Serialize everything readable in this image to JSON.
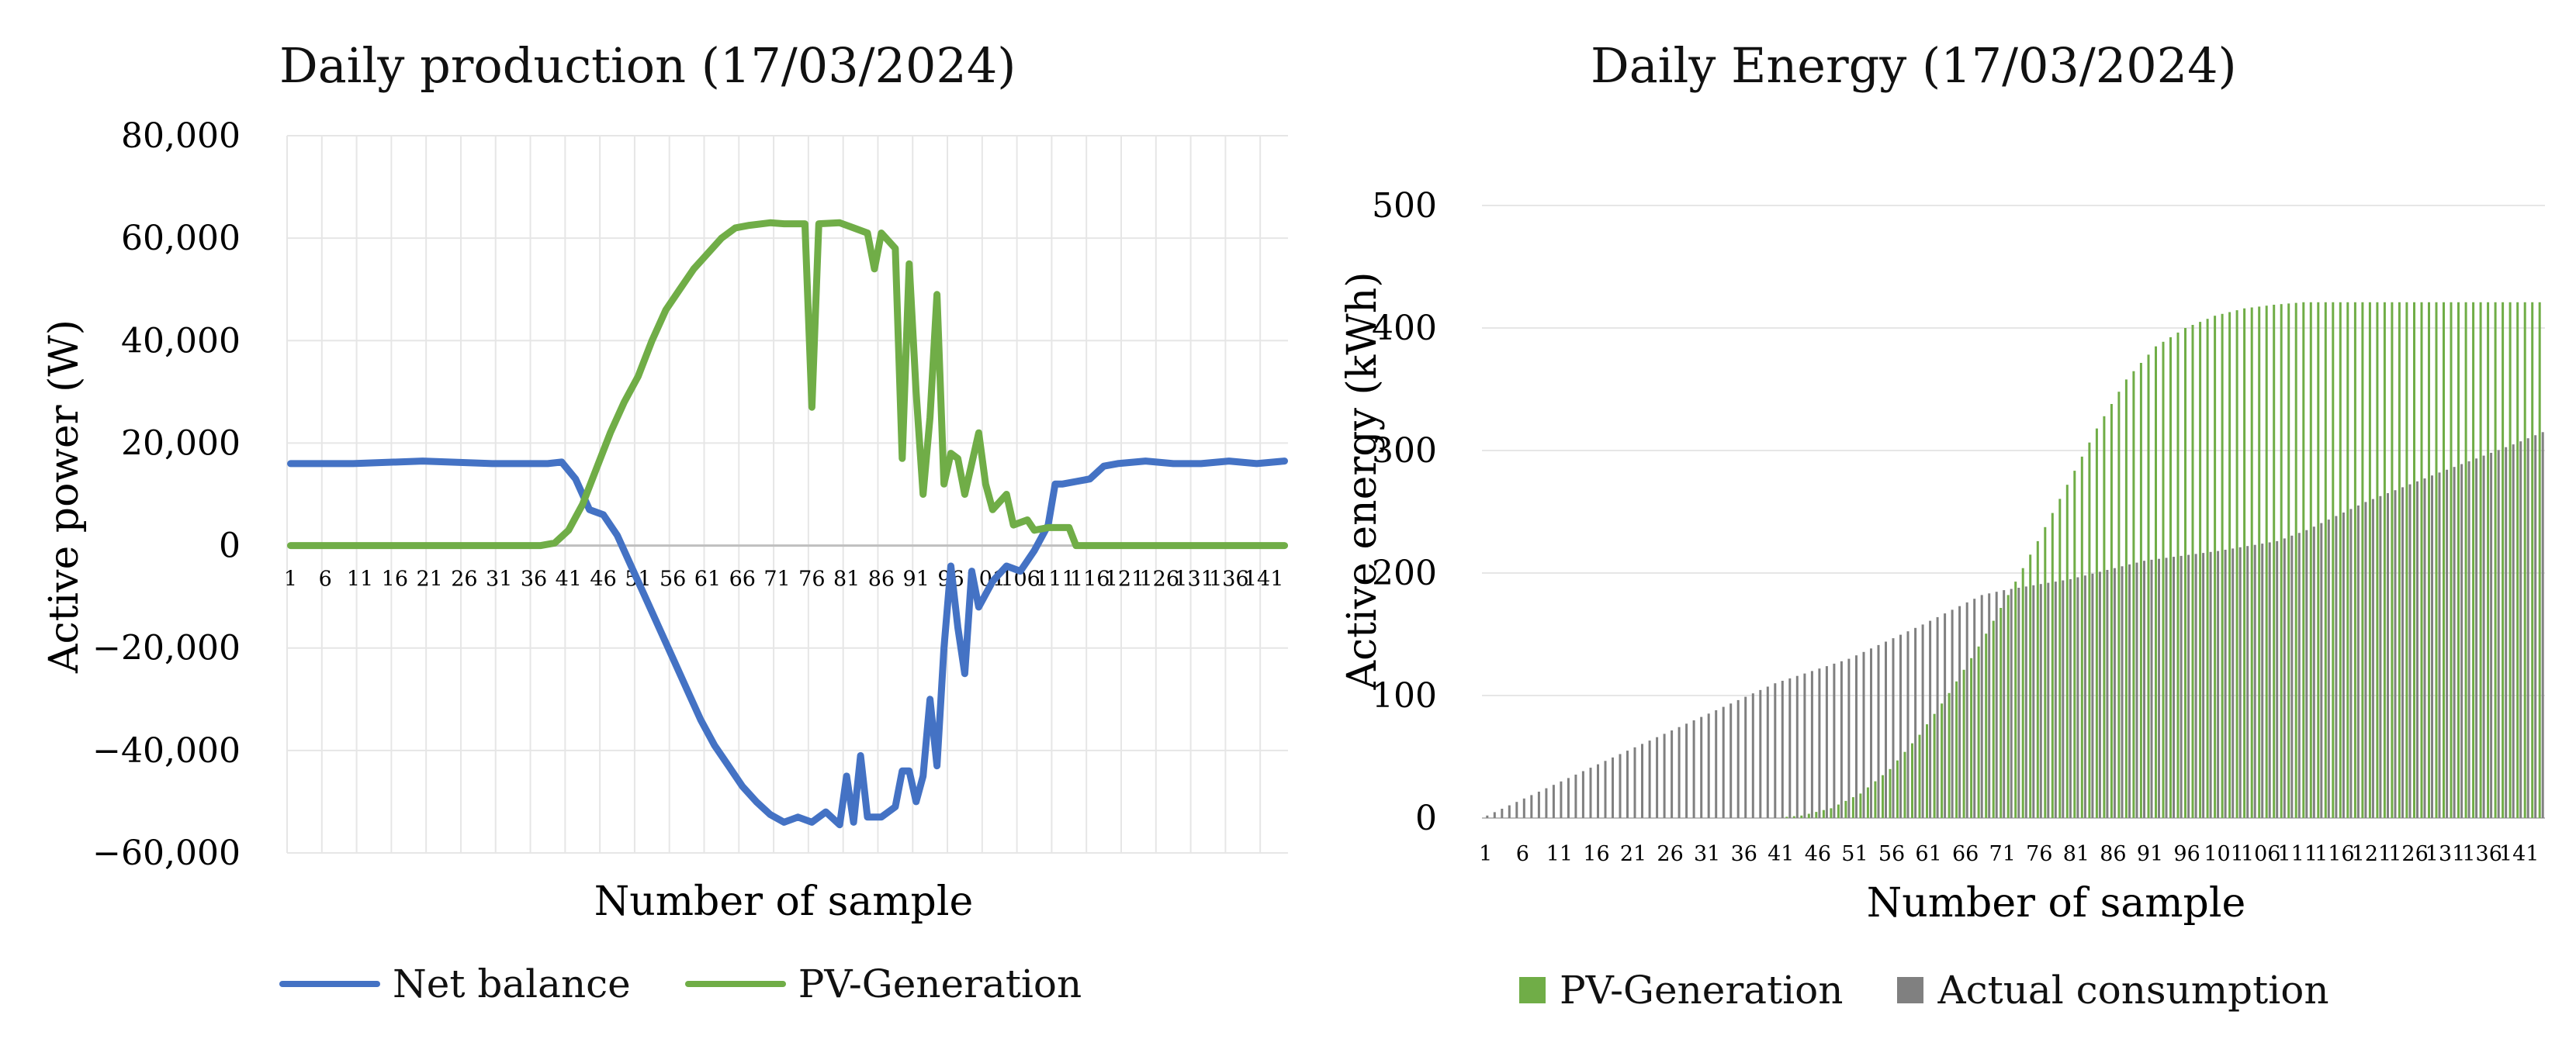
{
  "chart_data": [
    {
      "type": "line",
      "title": "Daily production (17/03/2024)",
      "xlabel": "Number of sample",
      "ylabel": "Active power (W)",
      "ylim": [
        -60000,
        80000
      ],
      "yticks": [
        80000,
        60000,
        40000,
        20000,
        0,
        -20000,
        -40000,
        -60000
      ],
      "ytick_labels": [
        "80,000",
        "60,000",
        "40,000",
        "20,000",
        "0",
        "−20,000",
        "−40,000",
        "−60,000"
      ],
      "xlim": [
        1,
        144
      ],
      "xtick_labels": [
        "1",
        "6",
        "11",
        "16",
        "21",
        "26",
        "31",
        "36",
        "41",
        "46",
        "51",
        "56",
        "61",
        "66",
        "71",
        "76",
        "81",
        "86",
        "91",
        "96",
        "101",
        "106",
        "111",
        "116",
        "121",
        "126",
        "131",
        "136",
        "141"
      ],
      "grid": true,
      "legend_position": "bottom",
      "series": [
        {
          "name": "Net balance",
          "color": "#4472C4",
          "points": [
            [
              1,
              16000
            ],
            [
              10,
              16000
            ],
            [
              20,
              16500
            ],
            [
              30,
              16000
            ],
            [
              38,
              16000
            ],
            [
              40,
              16300
            ],
            [
              42,
              13000
            ],
            [
              44,
              7000
            ],
            [
              46,
              6000
            ],
            [
              48,
              2000
            ],
            [
              50,
              -4000
            ],
            [
              52,
              -10000
            ],
            [
              54,
              -16000
            ],
            [
              56,
              -22000
            ],
            [
              58,
              -28000
            ],
            [
              60,
              -34000
            ],
            [
              62,
              -39000
            ],
            [
              64,
              -43000
            ],
            [
              66,
              -47000
            ],
            [
              68,
              -50000
            ],
            [
              70,
              -52500
            ],
            [
              72,
              -54000
            ],
            [
              74,
              -53000
            ],
            [
              76,
              -54000
            ],
            [
              78,
              -52000
            ],
            [
              80,
              -54500
            ],
            [
              81,
              -45000
            ],
            [
              82,
              -54000
            ],
            [
              83,
              -41000
            ],
            [
              84,
              -53000
            ],
            [
              86,
              -53000
            ],
            [
              88,
              -51000
            ],
            [
              89,
              -44000
            ],
            [
              90,
              -44000
            ],
            [
              91,
              -50000
            ],
            [
              92,
              -45000
            ],
            [
              93,
              -30000
            ],
            [
              94,
              -43000
            ],
            [
              95,
              -20000
            ],
            [
              96,
              -4000
            ],
            [
              97,
              -16000
            ],
            [
              98,
              -25000
            ],
            [
              99,
              -5000
            ],
            [
              100,
              -12000
            ],
            [
              102,
              -7000
            ],
            [
              104,
              -4000
            ],
            [
              106,
              -5000
            ],
            [
              108,
              -1000
            ],
            [
              110,
              4000
            ],
            [
              111,
              12000
            ],
            [
              112,
              12000
            ],
            [
              114,
              12500
            ],
            [
              116,
              13000
            ],
            [
              118,
              15500
            ],
            [
              120,
              16000
            ],
            [
              124,
              16500
            ],
            [
              128,
              16000
            ],
            [
              132,
              16000
            ],
            [
              136,
              16500
            ],
            [
              140,
              16000
            ],
            [
              144,
              16500
            ]
          ]
        },
        {
          "name": "PV-Generation",
          "color": "#70AD47",
          "points": [
            [
              1,
              0
            ],
            [
              37,
              0
            ],
            [
              39,
              500
            ],
            [
              41,
              3000
            ],
            [
              43,
              8000
            ],
            [
              45,
              15000
            ],
            [
              47,
              22000
            ],
            [
              49,
              28000
            ],
            [
              51,
              33000
            ],
            [
              53,
              40000
            ],
            [
              55,
              46000
            ],
            [
              57,
              50000
            ],
            [
              59,
              54000
            ],
            [
              61,
              57000
            ],
            [
              63,
              60000
            ],
            [
              65,
              62000
            ],
            [
              67,
              62500
            ],
            [
              70,
              63000
            ],
            [
              72,
              62800
            ],
            [
              74,
              62800
            ],
            [
              75,
              62800
            ],
            [
              76,
              27000
            ],
            [
              77,
              62800
            ],
            [
              80,
              63000
            ],
            [
              82,
              62000
            ],
            [
              84,
              61000
            ],
            [
              85,
              54000
            ],
            [
              86,
              61000
            ],
            [
              88,
              58000
            ],
            [
              89,
              17000
            ],
            [
              90,
              55000
            ],
            [
              91,
              30000
            ],
            [
              92,
              10000
            ],
            [
              93,
              25000
            ],
            [
              94,
              49000
            ],
            [
              95,
              12000
            ],
            [
              96,
              18000
            ],
            [
              97,
              17000
            ],
            [
              98,
              10000
            ],
            [
              100,
              22000
            ],
            [
              101,
              12000
            ],
            [
              102,
              7000
            ],
            [
              104,
              10000
            ],
            [
              105,
              4000
            ],
            [
              107,
              5000
            ],
            [
              108,
              3000
            ],
            [
              110,
              3500
            ],
            [
              113,
              3500
            ],
            [
              114,
              0
            ],
            [
              120,
              0
            ],
            [
              144,
              0
            ]
          ]
        }
      ]
    },
    {
      "type": "bar",
      "title": "Daily Energy (17/03/2024)",
      "xlabel": "Number of sample",
      "ylabel": "Active energy (kWh)",
      "ylim": [
        0,
        500
      ],
      "yticks": [
        500,
        400,
        300,
        200,
        100,
        0
      ],
      "ytick_labels": [
        "500",
        "400",
        "300",
        "200",
        "100",
        "0"
      ],
      "n_samples": 144,
      "xtick_labels": [
        "1",
        "6",
        "11",
        "16",
        "21",
        "26",
        "31",
        "36",
        "41",
        "46",
        "51",
        "56",
        "61",
        "66",
        "71",
        "76",
        "81",
        "86",
        "91",
        "96",
        "101",
        "106",
        "111",
        "116",
        "121",
        "126",
        "131",
        "136",
        "141"
      ],
      "grid": true,
      "legend_position": "bottom",
      "series": [
        {
          "name": "PV-Generation",
          "color": "#70AD47",
          "points": [
            [
              1,
              0
            ],
            [
              40,
              0
            ],
            [
              44,
              2
            ],
            [
              48,
              8
            ],
            [
              52,
              20
            ],
            [
              56,
              40
            ],
            [
              60,
              68
            ],
            [
              64,
              102
            ],
            [
              68,
              140
            ],
            [
              72,
              182
            ],
            [
              76,
              226
            ],
            [
              80,
              272
            ],
            [
              84,
              318
            ],
            [
              88,
              358
            ],
            [
              92,
              385
            ],
            [
              96,
              400
            ],
            [
              100,
              410
            ],
            [
              104,
              416
            ],
            [
              108,
              419
            ],
            [
              112,
              421
            ],
            [
              116,
              421
            ],
            [
              144,
              421
            ]
          ]
        },
        {
          "name": "Actual consumption",
          "color": "#808080",
          "points": [
            [
              1,
              2
            ],
            [
              20,
              55
            ],
            [
              40,
              110
            ],
            [
              50,
              130
            ],
            [
              60,
              158
            ],
            [
              68,
              182
            ],
            [
              71,
              186
            ],
            [
              80,
              195
            ],
            [
              90,
              210
            ],
            [
              100,
              218
            ],
            [
              108,
              226
            ],
            [
              112,
              235
            ],
            [
              120,
              258
            ],
            [
              130,
              282
            ],
            [
              140,
              305
            ],
            [
              144,
              315
            ]
          ]
        }
      ]
    }
  ]
}
